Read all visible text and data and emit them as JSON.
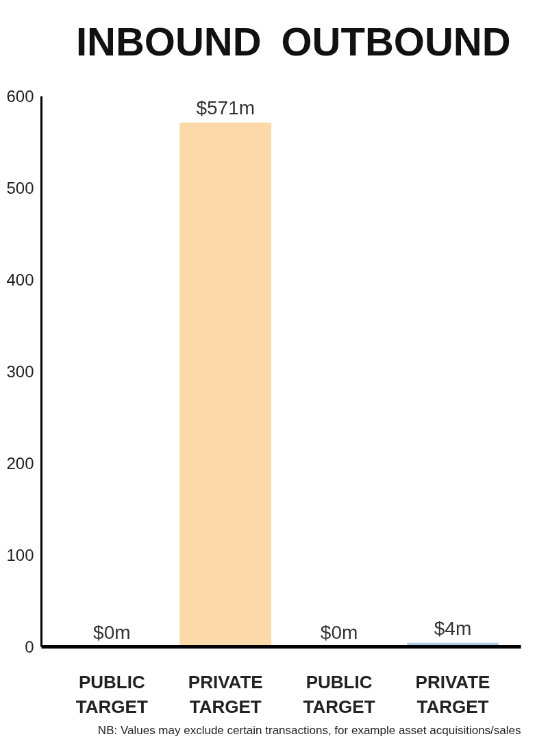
{
  "chart_data": {
    "type": "bar",
    "categories": [
      "PUBLIC\nTARGET",
      "PRIVATE\nTARGET",
      "PUBLIC\nTARGET",
      "PRIVATE\nTARGET"
    ],
    "values": [
      0,
      571,
      0,
      4
    ],
    "colors": [
      "#fcd9a8",
      "#fcd9a8",
      "#a9cce6",
      "#a9cce6"
    ],
    "value_labels": [
      "$0m",
      "$571m",
      "$0m",
      "$4m"
    ],
    "ylim": [
      0,
      600
    ],
    "yticks": [
      0,
      100,
      200,
      300,
      400,
      500,
      600
    ],
    "grid": false,
    "annotations": [
      "INBOUND",
      "OUTBOUND",
      "NB: Values may exclude certain transactions, for example asset acquisitions/sales"
    ]
  }
}
